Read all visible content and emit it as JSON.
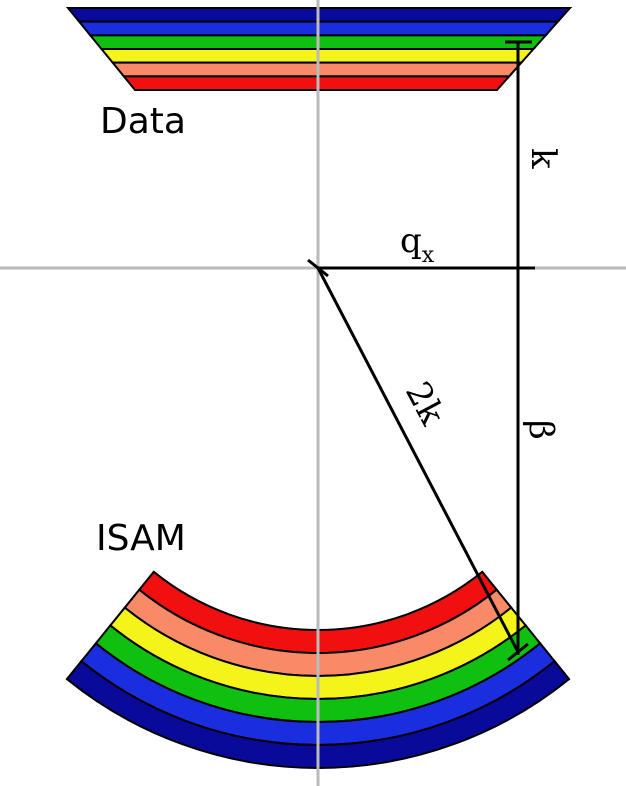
{
  "labels": {
    "data": "Data",
    "isam": "ISAM",
    "k": "k",
    "qx": "q",
    "qx_sub": "x",
    "two_k": "2k",
    "beta": "β"
  }
}
